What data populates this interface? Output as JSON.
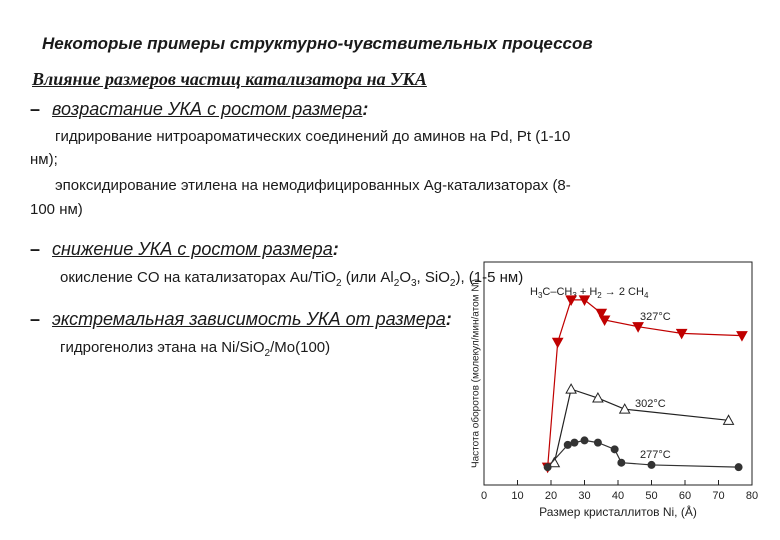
{
  "slide": {
    "title": "Некоторые примеры структурно-чувствительных процессов",
    "subtitle": "Влияние размеров частиц катализатора на УКА",
    "sections": [
      {
        "dash": "–",
        "heading": "возрастание УКА с ростом размера",
        "colon": ":",
        "lines": [
          "гидрирование нитроароматических соединений до аминов на Pd, Pt  (1-10",
          "нм);",
          "эпоксидирование этилена на немодифицированных Ag-катализаторах  (8-",
          "100 нм)"
        ]
      },
      {
        "dash": "–",
        "heading": "снижение УКА с ростом размера",
        "colon": ":",
        "parts": [
          "окисление CO на катализаторах Au/TiO",
          "2",
          " (или Al",
          "2",
          "O",
          "3",
          ", SiO",
          "2",
          "), (1-5 нм)"
        ]
      },
      {
        "dash": "–",
        "heading": "экстремальная зависимость УКА от размера",
        "colon": ":",
        "parts": [
          "гидрогенолиз этана на Ni/SiO",
          "2",
          "/Mo(100)"
        ]
      }
    ]
  },
  "chart_data": {
    "type": "line",
    "x_label": "Размер кристаллитов Ni, (Å)",
    "y_label": "Частота оборотов (молекул/мин/атом Ni)",
    "reaction": [
      "H",
      "3",
      "C–CH",
      "3",
      " + H",
      "2",
      " → 2 CH",
      "4"
    ],
    "xlim": [
      0,
      80
    ],
    "ylim": [
      0,
      100
    ],
    "xticks": [
      0,
      10,
      20,
      30,
      40,
      50,
      60,
      70,
      80
    ],
    "series": [
      {
        "name": "327°C",
        "color": "#c00000",
        "marker": "triangle-down",
        "filled": true,
        "x": [
          19,
          22,
          26,
          30,
          35,
          36,
          46,
          59,
          77
        ],
        "values": [
          8,
          64,
          83,
          83,
          77,
          74,
          71,
          68,
          67
        ]
      },
      {
        "name": "302°C",
        "color": "#222222",
        "marker": "triangle-up",
        "filled": false,
        "x": [
          21,
          26,
          34,
          42,
          73
        ],
        "values": [
          10,
          43,
          39,
          34,
          29
        ]
      },
      {
        "name": "277°C",
        "color": "#333333",
        "marker": "circle",
        "filled": true,
        "x": [
          19,
          25,
          27,
          30,
          34,
          39,
          41,
          50,
          76
        ],
        "values": [
          8,
          18,
          19,
          20,
          19,
          16,
          10,
          9,
          8
        ]
      }
    ]
  }
}
